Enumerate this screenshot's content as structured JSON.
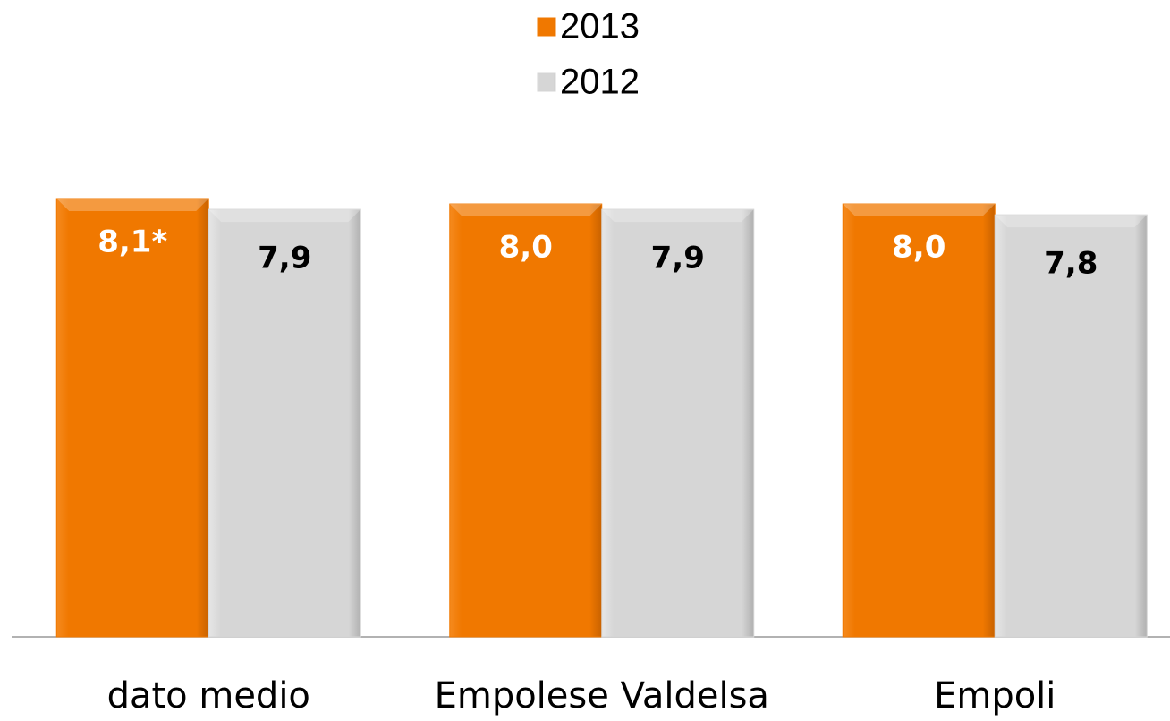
{
  "chart_data": {
    "type": "bar",
    "categories": [
      "dato medio",
      "Empolese Valdelsa",
      "Empoli"
    ],
    "series": [
      {
        "name": "2013",
        "color": "#f07800",
        "values": [
          8.1,
          8.0,
          8.0
        ],
        "value_labels": [
          "8,1*",
          "8,0",
          "8,0"
        ],
        "label_color": "#ffffff"
      },
      {
        "name": "2012",
        "color": "#d4d4d4",
        "values": [
          7.9,
          7.9,
          7.8
        ],
        "value_labels": [
          "7,9",
          "7,9",
          "7,8"
        ],
        "label_color": "#000000"
      }
    ]
  }
}
